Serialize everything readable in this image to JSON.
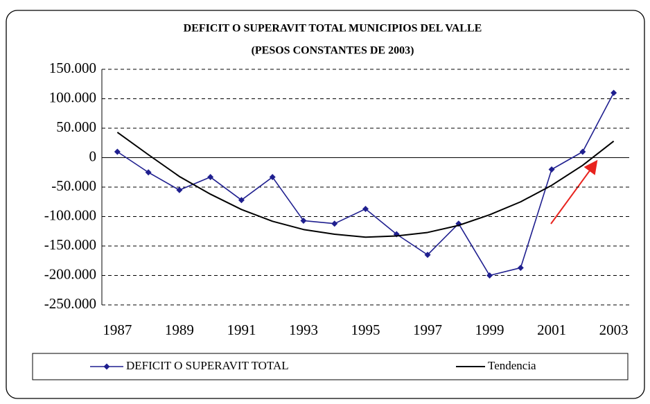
{
  "chart_data": {
    "type": "line",
    "title": "DEFICIT O SUPERAVIT TOTAL MUNICIPIOS DEL VALLE",
    "subtitle": "(PESOS CONSTANTES DE 2003)",
    "categories": [
      "1987",
      null,
      "1989",
      null,
      "1991",
      null,
      "1993",
      null,
      "1995",
      null,
      "1997",
      null,
      "1999",
      null,
      "2001",
      null,
      "2003"
    ],
    "series": [
      {
        "name": "DEFICIT O SUPERAVIT TOTAL",
        "color": "#1f1f8f",
        "marker": "diamond",
        "values": [
          10000,
          -25000,
          -55000,
          -33000,
          -72000,
          -33000,
          -107000,
          -112000,
          -87000,
          -130000,
          -165000,
          -112000,
          -200000,
          -187000,
          -20000,
          10000,
          110000
        ]
      },
      {
        "name": "Tendencia",
        "color": "#000000",
        "values": [
          43000,
          5000,
          -32000,
          -62000,
          -88000,
          -108000,
          -122000,
          -130000,
          -135000,
          -133000,
          -127000,
          -115000,
          -97000,
          -75000,
          -47000,
          -13000,
          28000
        ]
      }
    ],
    "ylim": [
      -250000,
      150000
    ],
    "yticks": [
      {
        "value": -250000,
        "label": "-250.000"
      },
      {
        "value": -200000,
        "label": "-200.000"
      },
      {
        "value": -150000,
        "label": "-150.000"
      },
      {
        "value": -100000,
        "label": "-100.000"
      },
      {
        "value": -50000,
        "label": "-50.000"
      },
      0,
      {
        "value": 50000,
        "label": "50.000"
      },
      {
        "value": 100000,
        "label": "100.000"
      },
      {
        "value": 150000,
        "label": "150.000"
      }
    ],
    "grid": true,
    "legend": "bottom"
  }
}
